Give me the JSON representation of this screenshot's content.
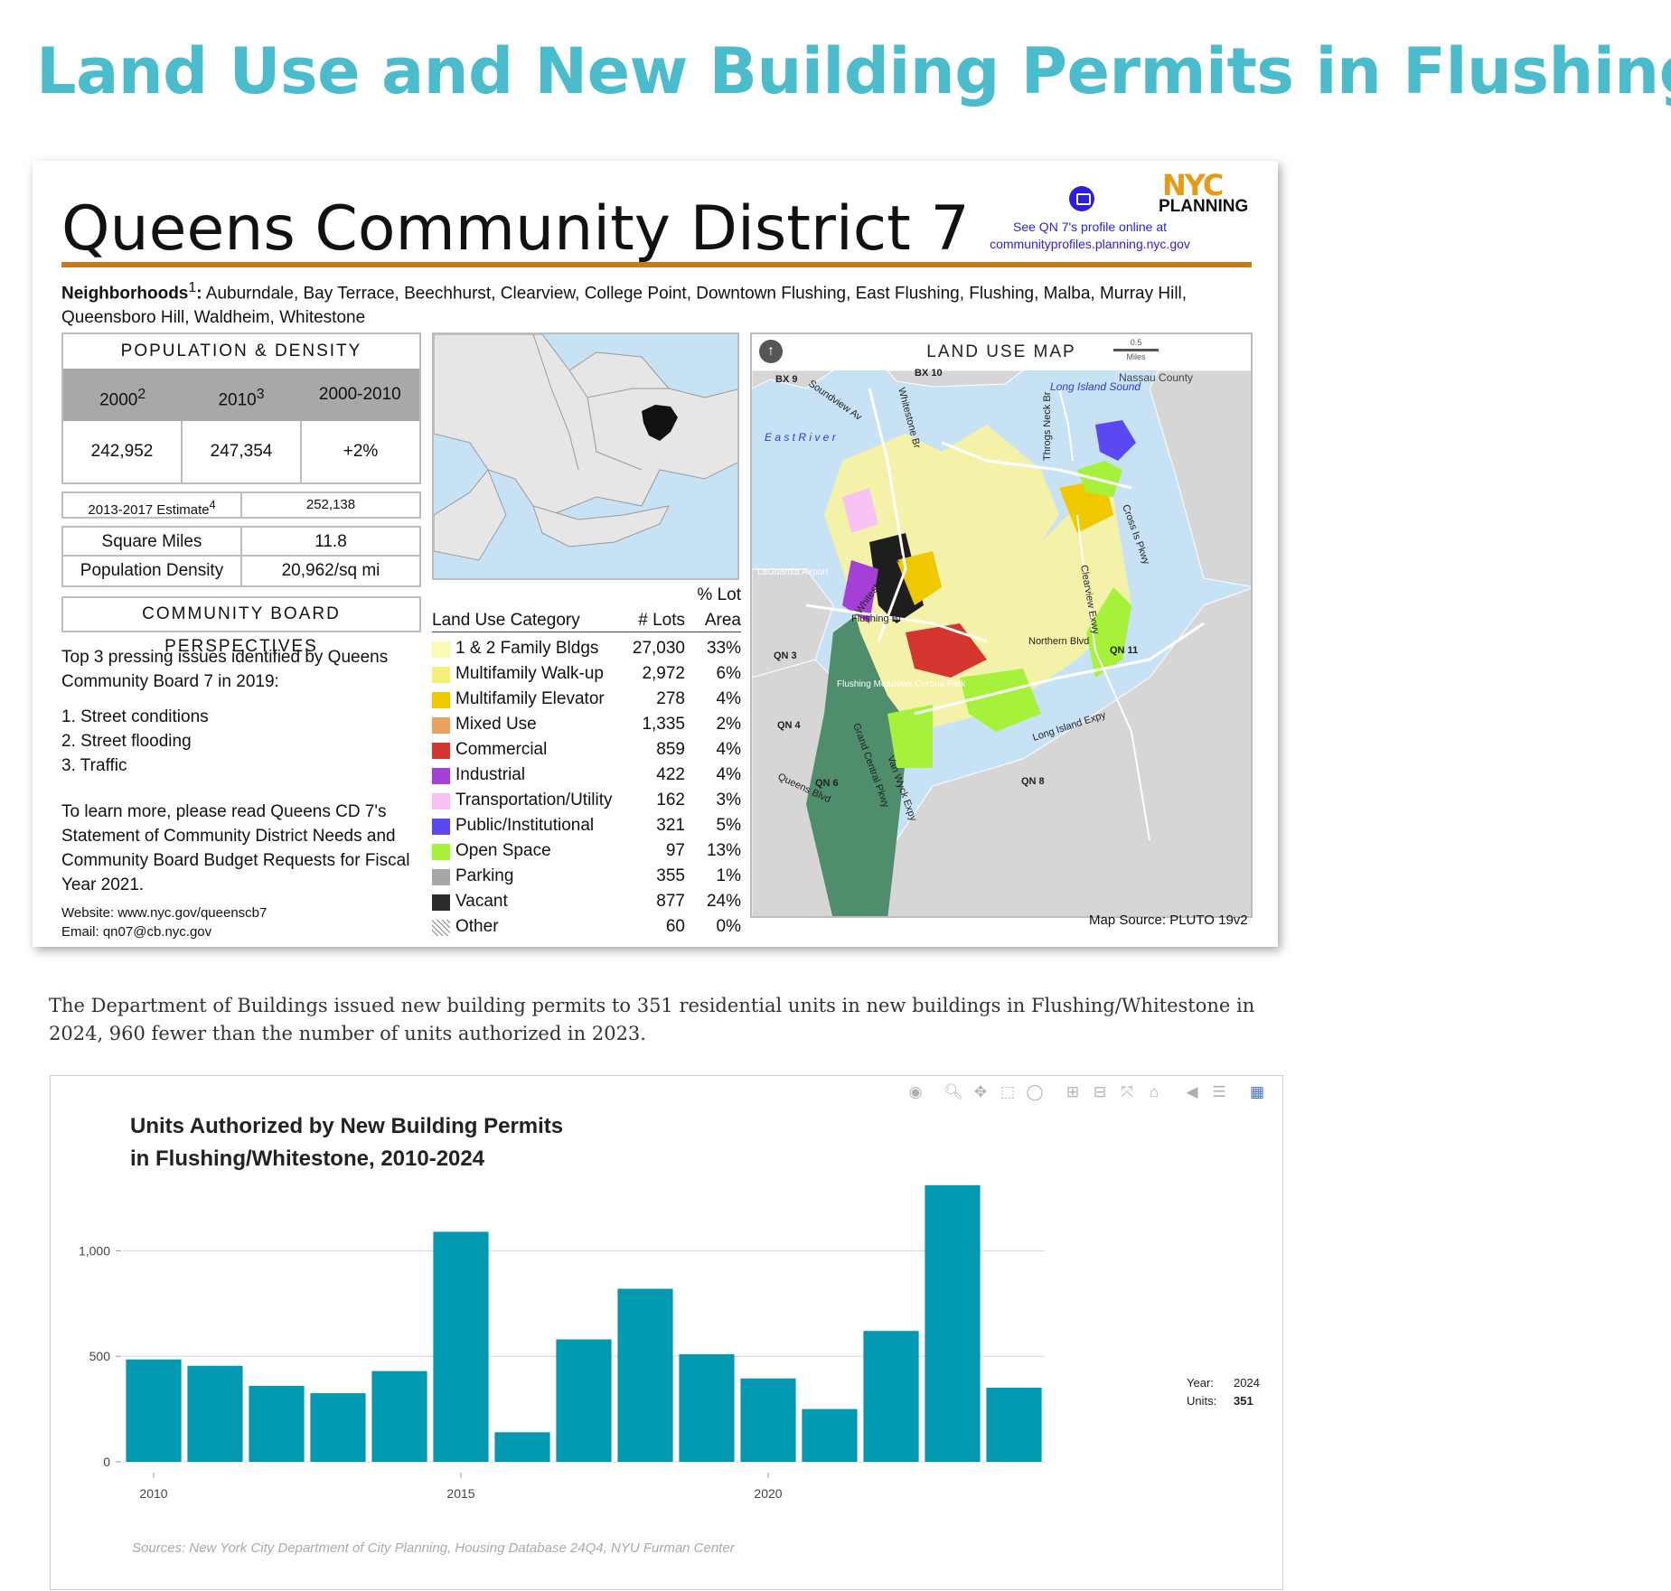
{
  "page": {
    "title": "Land Use and New Building Permits in Flushing",
    "intro": "The Department of Buildings issued new building permits to 351 residential units in new buildings in Flushing/Whitestone in 2024, 960 fewer than the number of units authorized in 2023."
  },
  "profile": {
    "title": "Queens Community District 7",
    "logo_nyc": "NYC",
    "logo_planning": "PLANNING",
    "online_note": "See QN 7's profile online at communityprofiles.planning.nyc.gov",
    "neighborhoods_label": "Neighborhoods",
    "neighborhoods_sup": "1",
    "neighborhoods_text": "Auburndale, Bay Terrace, Beechhurst, Clearview, College Point, Downtown Flushing, East Flushing, Flushing, Malba, Murray Hill, Queensboro Hill, Waldheim, Whitestone",
    "population": {
      "heading": "POPULATION & DENSITY",
      "years": [
        {
          "label": "2000",
          "sup": "2"
        },
        {
          "label": "2010",
          "sup": "3"
        },
        {
          "label": "2000-2010",
          "sup": ""
        }
      ],
      "values": [
        "242,952",
        "247,354",
        "+2%"
      ],
      "estimate_label": "2013-2017 Estimate",
      "estimate_sup": "4",
      "estimate_value": "252,138",
      "square_miles_label": "Square Miles",
      "square_miles_value": "11.8",
      "density_label": "Population Density",
      "density_value": "20,962/sq mi"
    },
    "community_board": {
      "heading": "COMMUNITY BOARD PERSPECTIVES",
      "intro": "Top 3 pressing issues identified by Queens Community Board 7 in 2019:",
      "issues": [
        "1. Street conditions",
        "2. Street flooding",
        "3. Traffic"
      ],
      "learn_more": "To learn more, please read Queens CD 7's Statement of Community District Needs and Community Board Budget Requests for Fiscal Year 2021.",
      "website": "Website: www.nyc.gov/queenscb7",
      "email": "Email: qn07@cb.nyc.gov"
    },
    "land_use_table": {
      "header_category": "Land Use Category",
      "header_lots": "# Lots",
      "header_pct_line1": "% Lot",
      "header_pct_line2": "Area",
      "rows": [
        {
          "name": "1 & 2 Family Bldgs",
          "lots": "27,030",
          "pct": "33%",
          "color": "#fbfbb4"
        },
        {
          "name": "Multifamily Walk-up",
          "lots": "2,972",
          "pct": "6%",
          "color": "#f5ef7a"
        },
        {
          "name": "Multifamily Elevator",
          "lots": "278",
          "pct": "4%",
          "color": "#f0c800"
        },
        {
          "name": "Mixed Use",
          "lots": "1,335",
          "pct": "2%",
          "color": "#eaa15f"
        },
        {
          "name": "Commercial",
          "lots": "859",
          "pct": "4%",
          "color": "#d5352f"
        },
        {
          "name": "Industrial",
          "lots": "422",
          "pct": "4%",
          "color": "#a63fd6"
        },
        {
          "name": "Transportation/Utility",
          "lots": "162",
          "pct": "3%",
          "color": "#f6c3f2"
        },
        {
          "name": "Public/Institutional",
          "lots": "321",
          "pct": "5%",
          "color": "#5b48f2"
        },
        {
          "name": "Open Space",
          "lots": "97",
          "pct": "13%",
          "color": "#a6f23a"
        },
        {
          "name": "Parking",
          "lots": "355",
          "pct": "1%",
          "color": "#a7a7a7"
        },
        {
          "name": "Vacant",
          "lots": "877",
          "pct": "24%",
          "color": "#2a2a2a"
        },
        {
          "name": "Other",
          "lots": "60",
          "pct": "0%",
          "color": "#ffffff"
        }
      ]
    },
    "land_use_map": {
      "heading": "LAND USE MAP",
      "scale_value": "0.5",
      "scale_unit": "Miles",
      "labels": {
        "bx9": "BX 9",
        "bx10": "BX 10",
        "nassau": "Nassau County",
        "long_island_sound": "Long Island Sound",
        "east_river": "E a s t   R i v e r",
        "soundview": "Soundview Av",
        "whitestone_br": "Whitestone Br",
        "throgs_neck": "Throgs Neck Br",
        "cross_is": "Cross Is Pkwy",
        "laguardia": "LaGuardia Airport",
        "whitestone_expy": "Whitestone Expy",
        "flushing_br": "Flushing Br",
        "clearview": "Clearview Exwy",
        "northern": "Northern Blvd",
        "qn11": "QN 11",
        "qn3": "QN 3",
        "fmcp": "Flushing Meadows Corona Park",
        "qn4": "QN 4",
        "grand_central": "Grand Central Pkwy",
        "van_wyck": "Van Wyck Expy",
        "lie": "Long Island Expy",
        "queens_blvd": "Queens Blvd",
        "qn6": "QN 6",
        "qn8": "QN 8"
      },
      "source": "Map Source: PLUTO 19v2"
    }
  },
  "chart": {
    "title_line1": "Units Authorized by New Building Permits",
    "title_line2": "in Flushing/Whitestone, 2010-2024",
    "source": "Sources: New York City Department of City Planning, Housing Database 24Q4, NYU Furman Center",
    "hover_year_label": "Year:",
    "hover_year_value": "2024",
    "hover_units_label": "Units:",
    "hover_units_value": "351",
    "modebar_icons": [
      "camera-icon",
      "zoom-icon",
      "pan-icon",
      "box-select-icon",
      "lasso-icon",
      "zoom-in-icon",
      "zoom-out-icon",
      "autoscale-icon",
      "home-icon",
      "spike-lines-icon",
      "compare-icon",
      "plotly-logo-icon"
    ]
  },
  "chart_data": {
    "type": "bar",
    "title": "Units Authorized by New Building Permits in Flushing/Whitestone, 2010-2024",
    "x": [
      2010,
      2011,
      2012,
      2013,
      2014,
      2015,
      2016,
      2017,
      2018,
      2019,
      2020,
      2021,
      2022,
      2023,
      2024
    ],
    "values": [
      485,
      455,
      360,
      325,
      430,
      1090,
      140,
      580,
      820,
      510,
      395,
      250,
      620,
      1311,
      351
    ],
    "xticks": [
      "2010",
      "2015",
      "2020"
    ],
    "yticks": [
      "0",
      "500",
      "1,000"
    ],
    "ylim": [
      0,
      1400
    ],
    "grid": true,
    "color": "#0099b1"
  }
}
